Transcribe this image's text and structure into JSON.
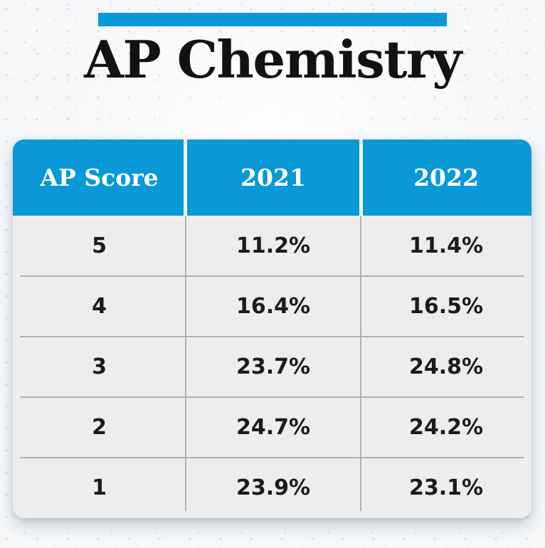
{
  "title": "AP Chemistry",
  "table": {
    "columns": [
      "AP Score",
      "2021",
      "2022"
    ],
    "rows": [
      [
        "5",
        "11.2%",
        "11.4%"
      ],
      [
        "4",
        "16.4%",
        "16.5%"
      ],
      [
        "3",
        "23.7%",
        "24.8%"
      ],
      [
        "2",
        "24.7%",
        "24.2%"
      ],
      [
        "1",
        "23.9%",
        "23.1%"
      ]
    ]
  },
  "colors": {
    "accent_blue": "#0899d6",
    "page_bg": "#f5f7f9",
    "table_body_bg": "#ededee",
    "divider_gray": "#aeb1b3",
    "header_text": "#ffffff",
    "body_text": "#1b1b1b"
  },
  "chart_data": {
    "type": "table",
    "title": "AP Chemistry",
    "columns": [
      "AP Score",
      "2021",
      "2022"
    ],
    "categories": [
      "5",
      "4",
      "3",
      "2",
      "1"
    ],
    "series": [
      {
        "name": "2021",
        "values": [
          11.2,
          16.4,
          23.7,
          24.7,
          23.9
        ]
      },
      {
        "name": "2022",
        "values": [
          11.4,
          16.5,
          24.8,
          24.2,
          23.1
        ]
      }
    ],
    "unit": "%",
    "rows": [
      [
        "5",
        "11.2%",
        "11.4%"
      ],
      [
        "4",
        "16.4%",
        "16.5%"
      ],
      [
        "3",
        "23.7%",
        "24.8%"
      ],
      [
        "2",
        "24.7%",
        "24.2%"
      ],
      [
        "1",
        "23.9%",
        "23.1%"
      ]
    ]
  }
}
